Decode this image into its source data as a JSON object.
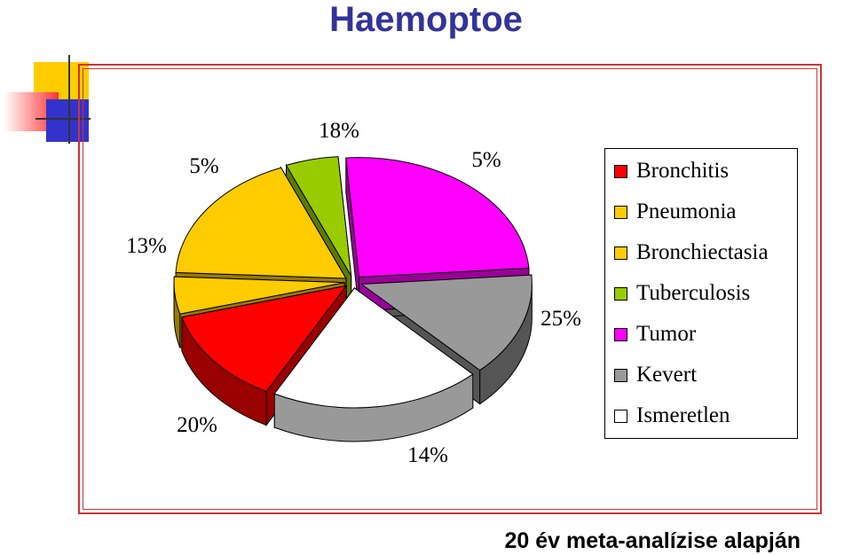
{
  "title": "Haemoptoe",
  "footer": "20 év meta-analízise alapján",
  "colors": {
    "title": "#333399",
    "frame": "#cc3333",
    "deco_yellow": "#ffcc00",
    "deco_red": "#ff3333",
    "deco_blue": "#3333cc"
  },
  "chart_data": {
    "type": "pie",
    "title": "",
    "three_d": true,
    "exploded": true,
    "legend_position": "right",
    "slices": [
      {
        "name": "Bronchitis",
        "value": 13,
        "label": "13%",
        "color": "#ff0000",
        "side_color": "#990000"
      },
      {
        "name": "Pneumonia",
        "value": 5,
        "label": "5%",
        "color": "#ffcc00",
        "side_color": "#997a00"
      },
      {
        "name": "Bronchiectasia",
        "value": 18,
        "label": "18%",
        "color": "#ffcc00",
        "side_color": "#997a00"
      },
      {
        "name": "Tuberculosis",
        "value": 5,
        "label": "5%",
        "color": "#99cc00",
        "side_color": "#5c7a00"
      },
      {
        "name": "Tumor",
        "value": 25,
        "label": "25%",
        "color": "#ff00ff",
        "side_color": "#990099"
      },
      {
        "name": "Kevert",
        "value": 14,
        "label": "14%",
        "color": "#999999",
        "side_color": "#555555"
      },
      {
        "name": "Ismeretlen",
        "value": 20,
        "label": "20%",
        "color": "#ffffff",
        "side_color": "#999999"
      }
    ]
  }
}
